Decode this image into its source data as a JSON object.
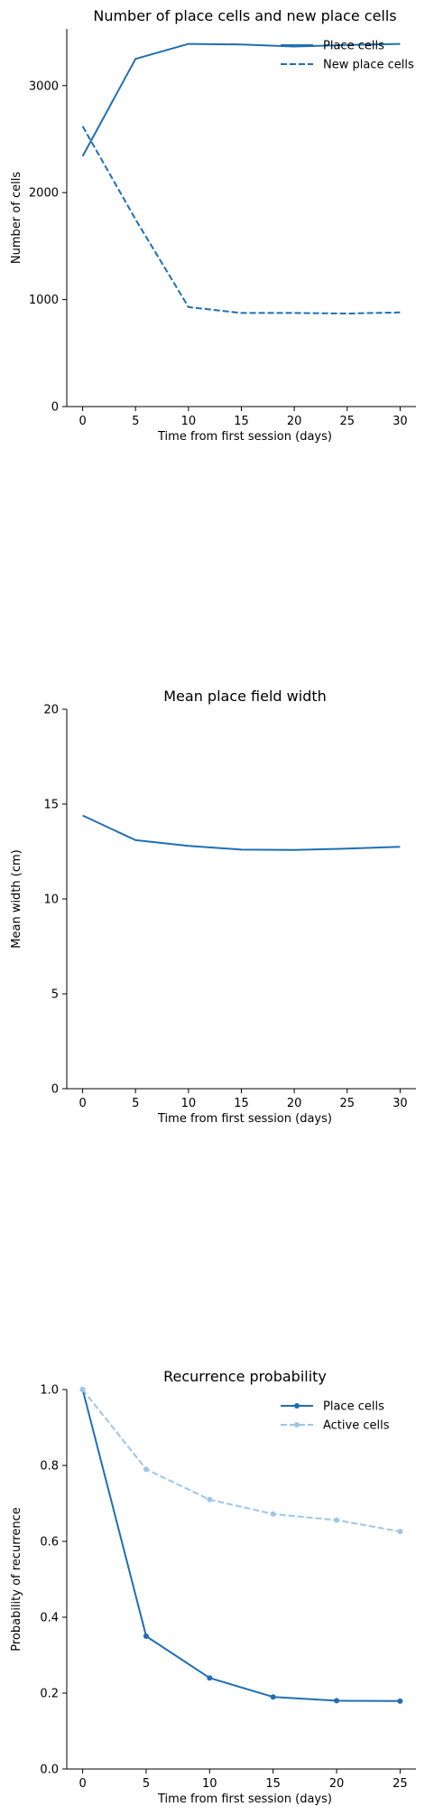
{
  "colors": {
    "primary": "#1f6fb4",
    "secondary": "#9ec6e5"
  },
  "chart_data": [
    {
      "type": "line",
      "title": "Number of place cells and new place cells",
      "xlabel": "Time from first session (days)",
      "ylabel": "Number of cells",
      "xlim": [
        -1.5,
        31.5
      ],
      "ylim": [
        0,
        3530
      ],
      "xticks": [
        0,
        5,
        10,
        15,
        20,
        25,
        30
      ],
      "yticks": [
        0,
        1000,
        2000,
        3000
      ],
      "legend": "top-right",
      "series": [
        {
          "name": "Place cells",
          "style": "solid",
          "markers": false,
          "x": [
            0,
            5,
            10,
            15,
            20,
            25,
            30
          ],
          "y": [
            2340,
            3250,
            3390,
            3385,
            3365,
            3380,
            3390
          ]
        },
        {
          "name": "New place cells",
          "style": "dashed",
          "markers": false,
          "x": [
            0,
            5,
            10,
            15,
            20,
            25,
            30
          ],
          "y": [
            2620,
            1750,
            930,
            875,
            875,
            870,
            880
          ]
        }
      ]
    },
    {
      "type": "line",
      "title": "Mean place field width",
      "xlabel": "Time from first session (days)",
      "ylabel": "Mean width (cm)",
      "xlim": [
        -1.5,
        31.5
      ],
      "ylim": [
        0,
        20
      ],
      "xticks": [
        0,
        5,
        10,
        15,
        20,
        25,
        30
      ],
      "yticks": [
        0,
        5,
        10,
        15,
        20
      ],
      "legend": "none",
      "series": [
        {
          "style": "solid",
          "markers": false,
          "x": [
            0,
            5,
            10,
            15,
            20,
            25,
            30
          ],
          "y": [
            14.4,
            13.1,
            12.8,
            12.6,
            12.58,
            12.65,
            12.75
          ]
        }
      ]
    },
    {
      "type": "line",
      "title": "Recurrence probability",
      "xlabel": "Time from first session (days)",
      "ylabel": "Probability of recurrence",
      "xlim": [
        -1.25,
        26.25
      ],
      "ylim": [
        0,
        1
      ],
      "xticks": [
        0,
        5,
        10,
        15,
        20,
        25
      ],
      "yticks": [
        0.0,
        0.2,
        0.4,
        0.6,
        0.8,
        1.0
      ],
      "ytick_decimals": 1,
      "legend": "top-right",
      "series": [
        {
          "name": "Place cells",
          "style": "solid",
          "markers": true,
          "x": [
            0,
            5,
            10,
            15,
            20,
            25
          ],
          "y": [
            1.0,
            0.35,
            0.24,
            0.19,
            0.18,
            0.179
          ]
        },
        {
          "name": "Active cells",
          "style": "dashed",
          "markers": true,
          "light": true,
          "x": [
            0,
            5,
            10,
            15,
            20,
            25
          ],
          "y": [
            1.0,
            0.79,
            0.71,
            0.672,
            0.656,
            0.626
          ]
        }
      ]
    }
  ]
}
